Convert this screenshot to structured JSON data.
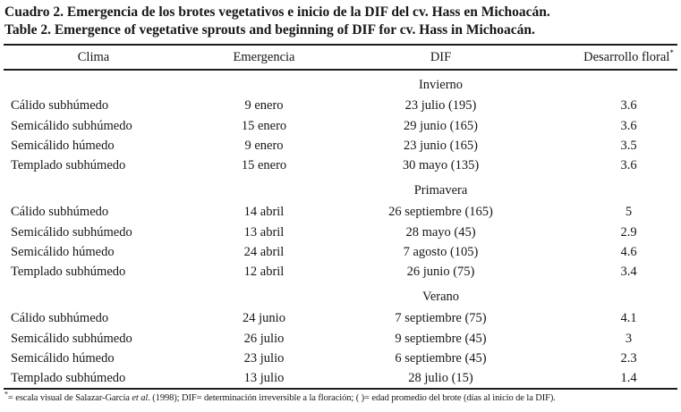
{
  "titles": {
    "es": "Cuadro 2. Emergencia de los brotes vegetativos e inicio de la DIF del cv. Hass en Michoacán.",
    "en": "Table 2. Emergence of vegetative sprouts and beginning of DIF for cv. Hass in Michoacán."
  },
  "table": {
    "columns": [
      "Clima",
      "Emergencia",
      "DIF",
      "Desarrollo floral"
    ],
    "column_keys": [
      "clima",
      "emergencia",
      "dif",
      "desarrollo-floral"
    ],
    "header_marker": "*",
    "sections": [
      {
        "name": "Invierno",
        "rows": [
          [
            "Cálido subhúmedo",
            "9 enero",
            "23 julio (195)",
            "3.6"
          ],
          [
            "Semicálido subhúmedo",
            "15 enero",
            "29 junio (165)",
            "3.6"
          ],
          [
            "Semicálido húmedo",
            "9 enero",
            "23 junio (165)",
            "3.5"
          ],
          [
            "Templado subhúmedo",
            "15 enero",
            "30 mayo (135)",
            "3.6"
          ]
        ]
      },
      {
        "name": "Primavera",
        "rows": [
          [
            "Cálido subhúmedo",
            "14 abril",
            "26 septiembre (165)",
            "5"
          ],
          [
            "Semicálido subhúmedo",
            "13 abril",
            "28 mayo (45)",
            "2.9"
          ],
          [
            "Semicálido húmedo",
            "24 abril",
            "7 agosto (105)",
            "4.6"
          ],
          [
            "Templado subhúmedo",
            "12 abril",
            "26 junio (75)",
            "3.4"
          ]
        ]
      },
      {
        "name": "Verano",
        "rows": [
          [
            "Cálido subhúmedo",
            "24 junio",
            "7 septiembre (75)",
            "4.1"
          ],
          [
            "Semicálido subhúmedo",
            "26 julio",
            "9 septiembre (45)",
            "3"
          ],
          [
            "Semicálido húmedo",
            "23 julio",
            "6 septiembre (45)",
            "2.3"
          ],
          [
            "Templado subhúmedo",
            "13 julio",
            "28 julio (15)",
            "1.4"
          ]
        ]
      }
    ]
  },
  "footnote": {
    "marker": "*",
    "text_before_italic": "= escala visual de Salazar-García ",
    "italic": "et al",
    "text_after_italic": ". (1998); DIF= determinación irreversible a la floración; ( )= edad promedio del brote (días al inicio de la DIF)."
  },
  "colors": {
    "text": "#161616",
    "rule": "#1c1c1c",
    "background": "#ffffff"
  }
}
